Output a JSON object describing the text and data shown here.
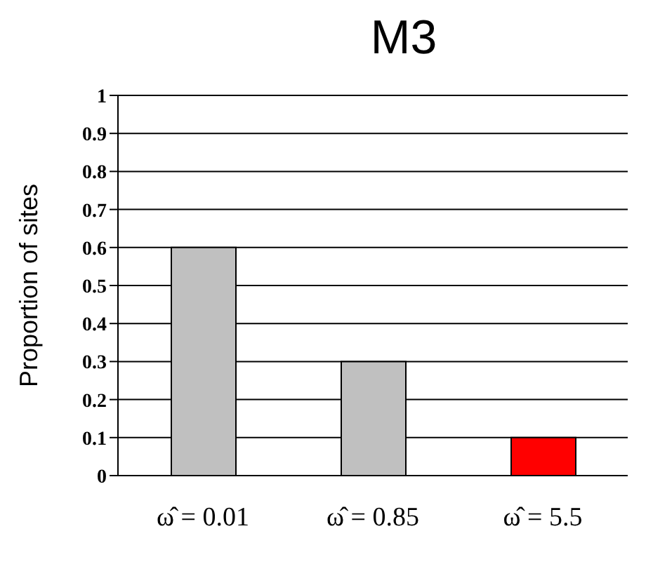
{
  "chart_data": {
    "type": "bar",
    "title": "M3",
    "ylabel": "Proportion of sites",
    "categories": [
      "ω̂ = 0.01",
      "ω̂ = 0.85",
      "ω̂ = 5.5"
    ],
    "values": [
      0.6,
      0.3,
      0.1
    ],
    "colors": [
      "#c0c0c0",
      "#c0c0c0",
      "#ff0000"
    ],
    "ylim": [
      0,
      1
    ],
    "yticks": [
      0,
      0.1,
      0.2,
      0.3,
      0.4,
      0.5,
      0.6,
      0.7,
      0.8,
      0.9,
      1
    ],
    "grid": "y",
    "legend": false
  }
}
